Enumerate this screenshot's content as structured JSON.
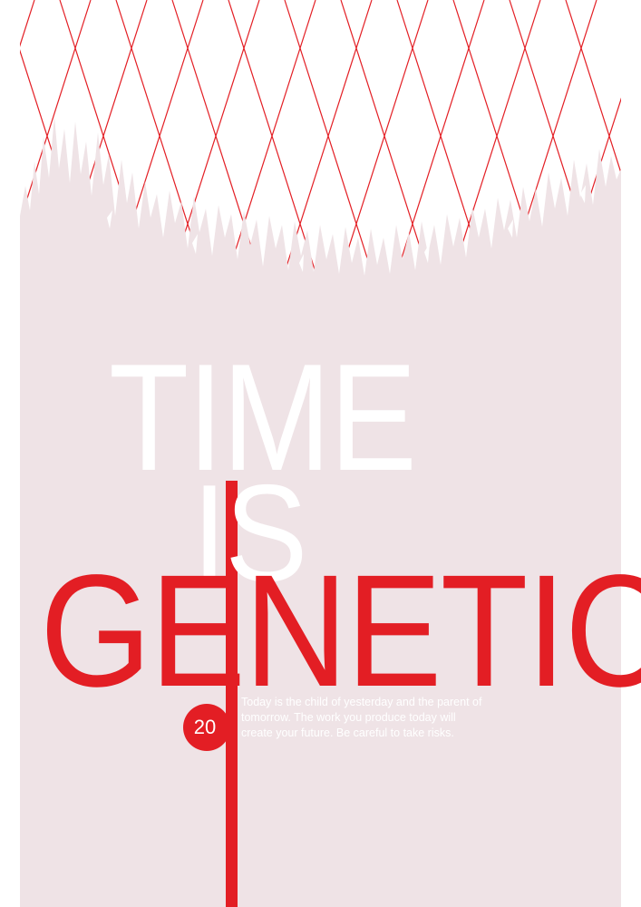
{
  "poster": {
    "line1": "TIME",
    "line2": "IS",
    "line3": "GENETIC",
    "badge_number": "20",
    "tagline": "Today is the child of yesterday and the parent of tomorrow. The work you produce today will create your future. Be careful to take risks."
  },
  "colors": {
    "background_panel": "#efe3e6",
    "accent_red": "#e31e24",
    "white": "#ffffff"
  },
  "decor": {
    "pattern": "red-diamond-lattice",
    "panel_edge": "torn-paper"
  }
}
